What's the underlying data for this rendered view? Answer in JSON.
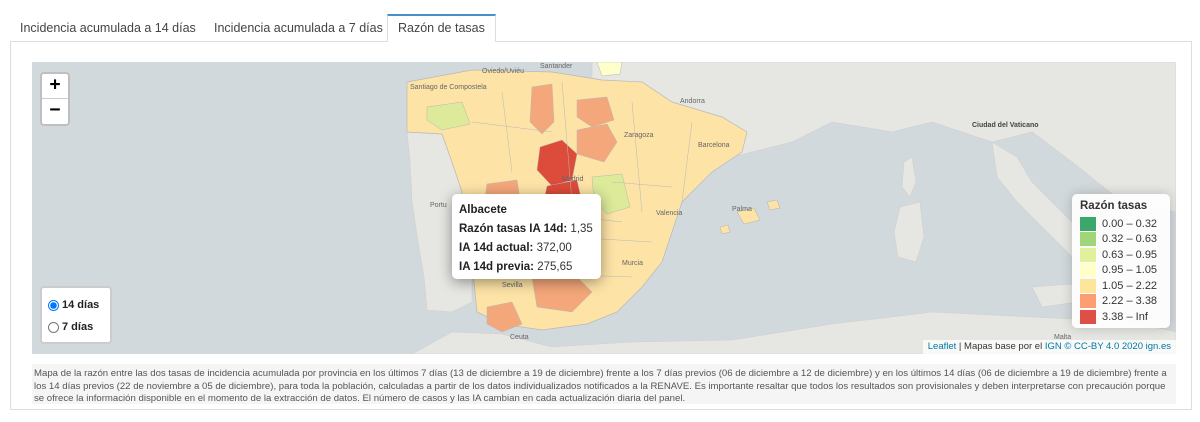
{
  "tabs": [
    {
      "label": "Incidencia acumulada a 14 días"
    },
    {
      "label": "Incidencia acumulada a 7 días"
    },
    {
      "label": "Razón de tasas"
    }
  ],
  "zoom": {
    "in_label": "+",
    "out_label": "−"
  },
  "period": {
    "options": [
      "14 días",
      "7 días"
    ],
    "selected": "14 días"
  },
  "tooltip": {
    "province": "Albacete",
    "ratio_label": "Razón tasas IA 14d:",
    "ratio_value": "1,35",
    "current_label": "IA 14d actual:",
    "current_value": "372,00",
    "previous_label": "IA 14d previa:",
    "previous_value": "275,65"
  },
  "legend": {
    "title": "Razón tasas",
    "items": [
      {
        "label": "0.00 – 0.32",
        "color": "#1a9850"
      },
      {
        "label": "0.32 – 0.63",
        "color": "#91cf60"
      },
      {
        "label": "0.63 – 0.95",
        "color": "#d9ef8b"
      },
      {
        "label": "0.95 – 1.05",
        "color": "#ffffbf"
      },
      {
        "label": "1.05 – 2.22",
        "color": "#fee08b"
      },
      {
        "label": "2.22 – 3.38",
        "color": "#fc8d59"
      },
      {
        "label": "3.38 – Inf",
        "color": "#d73027"
      }
    ]
  },
  "map_labels": {
    "santander": "Santander",
    "oviedo": "Oviedo/Uviéu",
    "santiago": "Santiago de Compostela",
    "andorra": "Andorra",
    "zaragoza": "Zaragoza",
    "barcelona": "Barcelona",
    "madrid": "Madrid",
    "valencia": "Valencia",
    "palma": "Palma",
    "murcia": "Murcia",
    "sevilla": "Sevilla",
    "ceuta": "Ceuta",
    "portugal": "Portu",
    "vaticano": "Ciudad del Vaticano",
    "malta": "Malta"
  },
  "attribution": {
    "leaflet": "Leaflet",
    "sep": " | Mapas base por el ",
    "ign": "IGN",
    "cc": " © CC-BY 4.0 2020 ign.es"
  },
  "description": "Mapa de la razón entre las dos tasas de incidencia acumulada por provincia en los últimos 7 días (13 de diciembre a 19 de diciembre) frente a los 7 días previos (06 de diciembre a 12 de diciembre) y en los últimos 14 días (06 de diciembre a 19 de diciembre) frente a los 14 días previos (22 de noviembre a 05 de diciembre), para toda la población, calculadas a partir de los datos individualizados notificados a la RENAVE. Es importante resaltar que todos los resultados son provisionales y deben interpretarse con precaución porque se ofrece la información disponible en el momento de la extracción de datos. El número de casos y las IA cambian en cada actualización diaria del panel."
}
